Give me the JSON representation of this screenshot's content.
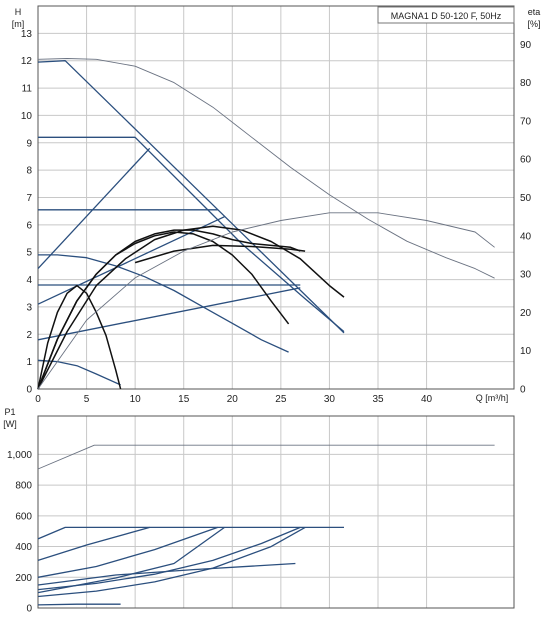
{
  "chart_data": [
    {
      "type": "line",
      "title": "MAGNA1 D 50-120 F, 50Hz",
      "xlabel": "Q [m³/h]",
      "ylabel": "H\n[m]",
      "y2label": "eta\n[%]",
      "xlim": [
        0,
        49
      ],
      "ylim": [
        0,
        14
      ],
      "y2lim": [
        0,
        100
      ],
      "xticks": [
        0,
        5,
        10,
        15,
        20,
        25,
        30,
        35,
        40
      ],
      "yticks": [
        0,
        1,
        2,
        3,
        4,
        5,
        6,
        7,
        8,
        9,
        10,
        11,
        12,
        13
      ],
      "y2ticks": [
        0,
        10,
        20,
        30,
        40,
        50,
        60,
        70,
        80,
        90
      ],
      "grid": true,
      "series": [
        {
          "style": "thin",
          "axis": "left",
          "x": [
            0,
            3,
            6,
            10,
            14,
            18,
            22,
            26,
            30,
            34,
            38,
            42,
            45,
            47
          ],
          "values": [
            12.05,
            12.08,
            12.05,
            11.8,
            11.2,
            10.3,
            9.2,
            8.1,
            7.1,
            6.2,
            5.4,
            4.8,
            4.4,
            4.05
          ]
        },
        {
          "style": "blue",
          "axis": "left",
          "x": [
            0,
            2.8,
            31.5
          ],
          "values": [
            11.95,
            12.0,
            2.05
          ]
        },
        {
          "style": "blue",
          "axis": "left",
          "x": [
            0,
            10,
            21,
            27.5,
            31.5
          ],
          "values": [
            9.2,
            9.2,
            5.3,
            3.3,
            2.1
          ]
        },
        {
          "style": "blue",
          "axis": "left",
          "x": [
            0,
            18.5
          ],
          "values": [
            6.55,
            6.55
          ]
        },
        {
          "style": "blue",
          "axis": "left",
          "x": [
            0,
            27
          ],
          "values": [
            3.8,
            3.8
          ]
        },
        {
          "style": "blue",
          "axis": "left",
          "x": [
            0,
            11.5
          ],
          "values": [
            4.4,
            8.8
          ]
        },
        {
          "style": "blue",
          "axis": "left",
          "x": [
            0,
            19.2
          ],
          "values": [
            3.1,
            6.3
          ]
        },
        {
          "style": "blue",
          "axis": "left",
          "x": [
            0,
            27
          ],
          "values": [
            1.8,
            3.7
          ]
        },
        {
          "style": "blue",
          "axis": "left",
          "x": [
            0,
            2,
            5,
            8,
            11,
            14,
            17,
            20,
            23,
            25.8
          ],
          "values": [
            4.9,
            4.9,
            4.8,
            4.5,
            4.1,
            3.6,
            3.0,
            2.4,
            1.8,
            1.35
          ]
        },
        {
          "style": "blue",
          "axis": "left",
          "x": [
            0,
            2,
            4,
            6,
            8.5
          ],
          "values": [
            1.05,
            1.0,
            0.85,
            0.55,
            0.15
          ]
        },
        {
          "style": "black",
          "axis": "right",
          "x": [
            0,
            1,
            2,
            3,
            4,
            5,
            6,
            7,
            8,
            8.5
          ],
          "values": [
            0,
            12,
            20,
            25,
            27,
            25,
            20,
            14,
            5,
            0
          ]
        },
        {
          "style": "black",
          "axis": "right",
          "x": [
            0,
            2,
            4,
            6,
            8,
            10,
            12,
            14,
            16,
            18,
            20,
            22,
            24,
            25.8
          ],
          "values": [
            0,
            13,
            23,
            30,
            35,
            38,
            40,
            41,
            40.5,
            38.5,
            35,
            30,
            23,
            17
          ]
        },
        {
          "style": "black",
          "axis": "right",
          "x": [
            0,
            3,
            6,
            9,
            12,
            15,
            18,
            21,
            24,
            27,
            30,
            31.5
          ],
          "values": [
            0,
            15,
            27,
            34,
            39,
            41.5,
            42.5,
            41.5,
            38.5,
            34,
            27,
            24
          ]
        },
        {
          "style": "black",
          "axis": "right",
          "x": [
            0,
            2,
            4,
            6,
            8,
            10,
            12,
            14,
            16,
            18,
            20,
            22,
            24,
            26,
            27
          ],
          "values": [
            0,
            13,
            23,
            30,
            35,
            38.5,
            40.5,
            41.5,
            41.5,
            40.5,
            39,
            38,
            37.5,
            37,
            36
          ]
        },
        {
          "style": "black",
          "axis": "right",
          "x": [
            10,
            14,
            18,
            22,
            26,
            27.5
          ],
          "values": [
            33,
            36,
            37.5,
            37.2,
            36.5,
            36
          ]
        },
        {
          "style": "thin",
          "axis": "right",
          "x": [
            0,
            5,
            10,
            15,
            20,
            25,
            30,
            35,
            40,
            45,
            47
          ],
          "values": [
            0,
            18,
            29,
            36,
            41,
            44,
            46,
            46,
            44,
            41,
            37
          ]
        }
      ]
    },
    {
      "type": "line",
      "title": "",
      "xlabel": "",
      "ylabel": "P1\n[W]",
      "xlim": [
        0,
        49
      ],
      "ylim": [
        0,
        1250
      ],
      "xticks": [
        0,
        5,
        10,
        15,
        20,
        25,
        30,
        35,
        40
      ],
      "yticks": [
        "0",
        "200",
        "400",
        "600",
        "800",
        "1,000"
      ],
      "ytick_values": [
        0,
        200,
        400,
        600,
        800,
        1000
      ],
      "grid": true,
      "series": [
        {
          "style": "thin",
          "x": [
            0,
            5.8,
            47
          ],
          "values": [
            905,
            1060,
            1060
          ]
        },
        {
          "style": "blue",
          "x": [
            0,
            2.8,
            31.5
          ],
          "values": [
            450,
            525,
            525
          ]
        },
        {
          "style": "blue",
          "x": [
            0,
            5,
            11.5
          ],
          "values": [
            310,
            410,
            525
          ]
        },
        {
          "style": "blue",
          "x": [
            0,
            6,
            12,
            18.5
          ],
          "values": [
            200,
            270,
            380,
            525
          ]
        },
        {
          "style": "blue",
          "x": [
            0,
            6,
            12,
            18,
            23,
            27
          ],
          "values": [
            120,
            160,
            220,
            310,
            420,
            525
          ]
        },
        {
          "style": "blue",
          "x": [
            0,
            6,
            12,
            18,
            24,
            27.5
          ],
          "values": [
            75,
            110,
            170,
            260,
            400,
            525
          ]
        },
        {
          "style": "blue",
          "x": [
            0,
            8,
            16,
            26.5
          ],
          "values": [
            150,
            215,
            250,
            290
          ]
        },
        {
          "style": "blue",
          "x": [
            0,
            8,
            14,
            19.2
          ],
          "values": [
            100,
            195,
            290,
            525
          ]
        },
        {
          "style": "blue",
          "x": [
            0,
            4,
            8.5
          ],
          "values": [
            20,
            25,
            25
          ]
        }
      ]
    }
  ]
}
